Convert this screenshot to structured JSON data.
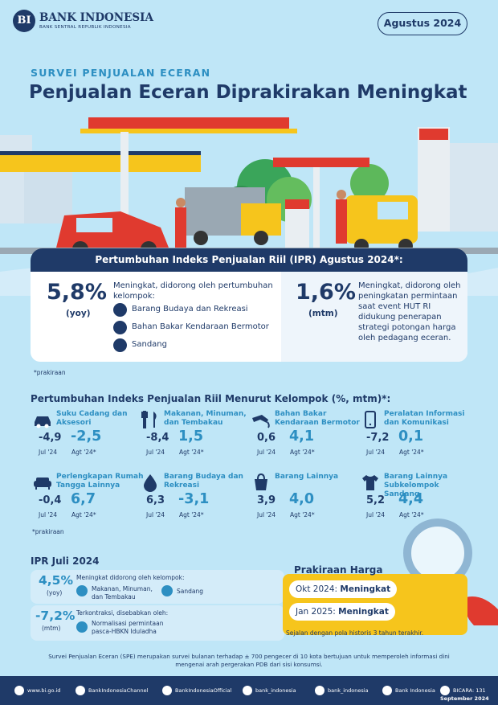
{
  "header": {
    "logo_mark": "BI",
    "org_name": "BANK INDONESIA",
    "org_sub": "BANK SENTRAL REPUBLIK INDONESIA",
    "month": "Agustus 2024",
    "kicker": "SURVEI PENJUALAN ECERAN",
    "title": "Penjualan Eceran Diprakirakan Meningkat"
  },
  "ipr_aug": {
    "heading": "Pertumbuhan Indeks Penjualan Riil (IPR) Agustus 2024*:",
    "yoy_value": "5,8%",
    "yoy_label": "(yoy)",
    "yoy_desc": "Meningkat, didorong oleh pertumbuhan kelompok:",
    "groups": [
      "Barang Budaya dan Rekreasi",
      "Bahan Bakar Kendaraan Bermotor",
      "Sandang"
    ],
    "group_icons": [
      "drop-icon",
      "fuel-nozzle-icon",
      "shirt-icon"
    ],
    "mtm_value": "1,6%",
    "mtm_label": "(mtm)",
    "mtm_desc": "Meningkat, didorong oleh peningkatan permintaan saat event HUT RI didukung penerapan strategi potongan harga oleh pedagang eceran."
  },
  "note1": "*prakiraan",
  "groups_section": {
    "title": "Pertumbuhan Indeks Penjualan Riil Menurut Kelompok (%, mtm)*:",
    "jul_label": "Jul '24",
    "agt_label": "Agt '24*",
    "items": [
      {
        "name": "Suku Cadang dan Aksesori",
        "icon": "car-icon",
        "jul": "-4,9",
        "agt": "-2,5"
      },
      {
        "name": "Makanan, Minuman, dan Tembakau",
        "icon": "utensils-icon",
        "jul": "-8,4",
        "agt": "1,5"
      },
      {
        "name": "Bahan Bakar Kendaraan Bermotor",
        "icon": "fuel-nozzle-icon",
        "jul": "0,6",
        "agt": "4,1"
      },
      {
        "name": "Peralatan Informasi dan Komunikasi",
        "icon": "phone-icon",
        "jul": "-7,2",
        "agt": "0,1"
      },
      {
        "name": "Perlengkapan Rumah Tangga Lainnya",
        "icon": "sofa-icon",
        "jul": "-0,4",
        "agt": "6,7"
      },
      {
        "name": "Barang Budaya dan Rekreasi",
        "icon": "drop-icon",
        "jul": "6,3",
        "agt": "-3,1"
      },
      {
        "name": "Barang Lainnya",
        "icon": "shopping-bag-icon",
        "jul": "3,9",
        "agt": "4,0"
      },
      {
        "name": "Barang Lainnya Subkelompok Sandang",
        "icon": "shirt-icon",
        "jul": "5,2",
        "agt": "4,4"
      }
    ]
  },
  "note2": "*prakiraan",
  "ipr_jul": {
    "title": "IPR Juli 2024",
    "yoy_value": "4,5%",
    "yoy_label": "(yoy)",
    "yoy_desc": "Meningkat didorong oleh kelompok:",
    "yoy_item1": "Makanan, Minuman, dan Tembakau",
    "yoy_item2": "Sandang",
    "mtm_value": "-7,2%",
    "mtm_label": "(mtm)",
    "mtm_desc": "Terkontraksi, disebabkan oleh:",
    "mtm_item": "Normalisasi permintaan pasca-HBKN Iduladha"
  },
  "price_forecast": {
    "title": "Prakiraan Harga",
    "okt": "Okt 2024: ",
    "okt_status": "Meningkat",
    "jan": "Jan 2025: ",
    "jan_status": "Meningkat",
    "note": "Sejalan dengan pola historis 3 tahun terakhir."
  },
  "survey_note": "Survei Penjualan Eceran (SPE) merupakan survei bulanan terhadap ± 700 pengecer di 10 kota bertujuan untuk memperoleh informasi dini mengenai arah pergerakan PDB dari sisi konsumsi.",
  "footer": {
    "links": [
      "www.bi.go.id",
      "BankIndonesiaChannel",
      "BankIndonesiaOfficial",
      "bank_indonesia",
      "bank_indonesia",
      "Bank Indonesia",
      "BICARA: 131"
    ],
    "link_icons": [
      "globe-icon",
      "youtube-icon",
      "facebook-icon",
      "twitter-icon",
      "instagram-icon",
      "tiktok-icon",
      "phone-icon"
    ],
    "date": "September 2024"
  },
  "colors": {
    "navy": "#1f3a68",
    "accent": "#2d8fc2",
    "background": "#bfe6f7",
    "yellow": "#f6c51c",
    "red": "#e03a2f"
  }
}
